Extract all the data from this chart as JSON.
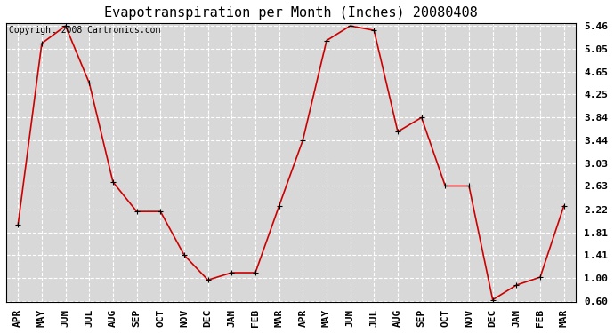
{
  "title": "Evapotranspiration per Month (Inches) 20080408",
  "copyright": "Copyright 2008 Cartronics.com",
  "months": [
    "APR",
    "MAY",
    "JUN",
    "JUL",
    "AUG",
    "SEP",
    "OCT",
    "NOV",
    "DEC",
    "JAN",
    "FEB",
    "MAR",
    "APR",
    "MAY",
    "JUN",
    "JUL",
    "AUG",
    "SEP",
    "OCT",
    "NOV",
    "DEC",
    "JAN",
    "FEB",
    "MAR"
  ],
  "values": [
    1.95,
    5.15,
    5.46,
    4.45,
    2.7,
    2.18,
    2.18,
    1.41,
    0.97,
    1.1,
    1.1,
    2.28,
    3.44,
    5.2,
    5.46,
    5.38,
    3.59,
    3.84,
    2.63,
    2.63,
    0.62,
    0.88,
    1.02,
    2.28
  ],
  "yticks": [
    0.6,
    1.0,
    1.41,
    1.81,
    2.22,
    2.63,
    3.03,
    3.44,
    3.84,
    4.25,
    4.65,
    5.05,
    5.46
  ],
  "ymin": 0.6,
  "ymax": 5.46,
  "line_color": "#cc0000",
  "marker": "+",
  "plot_bg_color": "#d8d8d8",
  "fig_bg_color": "#ffffff",
  "grid_color": "#ffffff",
  "title_fontsize": 11,
  "copyright_fontsize": 7,
  "tick_fontsize": 8
}
